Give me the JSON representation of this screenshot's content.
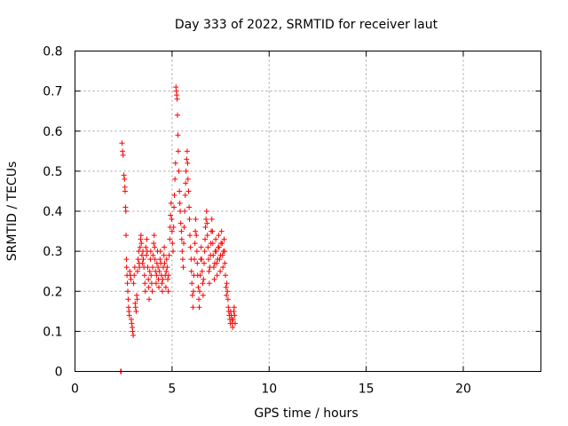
{
  "chart_data": {
    "type": "scatter",
    "title": "Day 333 of 2022, SRMTID for receiver laut",
    "xlabel": "GPS time / hours",
    "ylabel": "SRMTID / TECUs",
    "xlim": [
      0,
      24
    ],
    "ylim": [
      0,
      0.8
    ],
    "xticks": [
      0,
      5,
      10,
      15,
      20
    ],
    "xtick_labels": [
      "0",
      "5",
      "10",
      "15",
      "20"
    ],
    "yticks": [
      0,
      0.1,
      0.2,
      0.3,
      0.4,
      0.5,
      0.6,
      0.7,
      0.8
    ],
    "ytick_labels": [
      "0",
      "0.1",
      "0.2",
      "0.3",
      "0.4",
      "0.5",
      "0.6",
      "0.7",
      "0.8"
    ],
    "grid": true,
    "marker": "+",
    "color": "#ff0000",
    "series": [
      {
        "name": "SRMTID",
        "points": [
          [
            2.35,
            0.0
          ],
          [
            2.37,
            0.0
          ],
          [
            2.38,
            0.0
          ],
          [
            2.42,
            0.57
          ],
          [
            2.45,
            0.55
          ],
          [
            2.48,
            0.54
          ],
          [
            2.52,
            0.49
          ],
          [
            2.55,
            0.48
          ],
          [
            2.57,
            0.46
          ],
          [
            2.58,
            0.45
          ],
          [
            2.6,
            0.41
          ],
          [
            2.62,
            0.4
          ],
          [
            2.63,
            0.34
          ],
          [
            2.65,
            0.28
          ],
          [
            2.66,
            0.26
          ],
          [
            2.68,
            0.24
          ],
          [
            2.7,
            0.22
          ],
          [
            2.72,
            0.2
          ],
          [
            2.74,
            0.18
          ],
          [
            2.76,
            0.16
          ],
          [
            2.78,
            0.15
          ],
          [
            2.8,
            0.14
          ],
          [
            2.82,
            0.25
          ],
          [
            2.85,
            0.24
          ],
          [
            2.88,
            0.23
          ],
          [
            2.9,
            0.13
          ],
          [
            2.92,
            0.12
          ],
          [
            2.95,
            0.11
          ],
          [
            2.97,
            0.1
          ],
          [
            3.0,
            0.09
          ],
          [
            3.02,
            0.22
          ],
          [
            3.05,
            0.24
          ],
          [
            3.08,
            0.26
          ],
          [
            3.1,
            0.17
          ],
          [
            3.12,
            0.16
          ],
          [
            3.15,
            0.15
          ],
          [
            3.18,
            0.19
          ],
          [
            3.2,
            0.18
          ],
          [
            3.22,
            0.25
          ],
          [
            3.25,
            0.28
          ],
          [
            3.28,
            0.3
          ],
          [
            3.3,
            0.27
          ],
          [
            3.32,
            0.26
          ],
          [
            3.35,
            0.31
          ],
          [
            3.38,
            0.33
          ],
          [
            3.4,
            0.34
          ],
          [
            3.42,
            0.32
          ],
          [
            3.45,
            0.29
          ],
          [
            3.48,
            0.27
          ],
          [
            3.5,
            0.3
          ],
          [
            3.52,
            0.28
          ],
          [
            3.55,
            0.26
          ],
          [
            3.58,
            0.24
          ],
          [
            3.6,
            0.22
          ],
          [
            3.62,
            0.2
          ],
          [
            3.65,
            0.31
          ],
          [
            3.68,
            0.29
          ],
          [
            3.7,
            0.33
          ],
          [
            3.72,
            0.3
          ],
          [
            3.75,
            0.26
          ],
          [
            3.78,
            0.23
          ],
          [
            3.8,
            0.21
          ],
          [
            3.82,
            0.18
          ],
          [
            3.85,
            0.25
          ],
          [
            3.88,
            0.28
          ],
          [
            3.9,
            0.3
          ],
          [
            3.92,
            0.24
          ],
          [
            3.95,
            0.22
          ],
          [
            3.98,
            0.2
          ],
          [
            4.0,
            0.26
          ],
          [
            4.02,
            0.29
          ],
          [
            4.05,
            0.32
          ],
          [
            4.08,
            0.34
          ],
          [
            4.1,
            0.31
          ],
          [
            4.12,
            0.28
          ],
          [
            4.15,
            0.25
          ],
          [
            4.18,
            0.22
          ],
          [
            4.2,
            0.24
          ],
          [
            4.22,
            0.27
          ],
          [
            4.25,
            0.3
          ],
          [
            4.28,
            0.26
          ],
          [
            4.3,
            0.23
          ],
          [
            4.32,
            0.21
          ],
          [
            4.35,
            0.25
          ],
          [
            4.38,
            0.28
          ],
          [
            4.4,
            0.3
          ],
          [
            4.42,
            0.27
          ],
          [
            4.45,
            0.24
          ],
          [
            4.48,
            0.22
          ],
          [
            4.5,
            0.2
          ],
          [
            4.52,
            0.23
          ],
          [
            4.55,
            0.26
          ],
          [
            4.58,
            0.29
          ],
          [
            4.6,
            0.31
          ],
          [
            4.62,
            0.27
          ],
          [
            4.65,
            0.24
          ],
          [
            4.68,
            0.21
          ],
          [
            4.7,
            0.25
          ],
          [
            4.72,
            0.28
          ],
          [
            4.75,
            0.26
          ],
          [
            4.78,
            0.23
          ],
          [
            4.8,
            0.2
          ],
          [
            4.82,
            0.24
          ],
          [
            4.85,
            0.29
          ],
          [
            4.88,
            0.33
          ],
          [
            4.9,
            0.36
          ],
          [
            4.92,
            0.39
          ],
          [
            4.95,
            0.42
          ],
          [
            4.98,
            0.38
          ],
          [
            5.0,
            0.35
          ],
          [
            5.02,
            0.32
          ],
          [
            5.05,
            0.3
          ],
          [
            5.08,
            0.36
          ],
          [
            5.1,
            0.41
          ],
          [
            5.12,
            0.44
          ],
          [
            5.15,
            0.48
          ],
          [
            5.18,
            0.52
          ],
          [
            5.2,
            0.71
          ],
          [
            5.22,
            0.7
          ],
          [
            5.24,
            0.69
          ],
          [
            5.26,
            0.68
          ],
          [
            5.28,
            0.64
          ],
          [
            5.3,
            0.59
          ],
          [
            5.32,
            0.55
          ],
          [
            5.35,
            0.5
          ],
          [
            5.38,
            0.45
          ],
          [
            5.4,
            0.42
          ],
          [
            5.42,
            0.4
          ],
          [
            5.45,
            0.37
          ],
          [
            5.48,
            0.35
          ],
          [
            5.5,
            0.33
          ],
          [
            5.52,
            0.3
          ],
          [
            5.55,
            0.28
          ],
          [
            5.58,
            0.26
          ],
          [
            5.6,
            0.32
          ],
          [
            5.62,
            0.36
          ],
          [
            5.65,
            0.4
          ],
          [
            5.68,
            0.44
          ],
          [
            5.7,
            0.47
          ],
          [
            5.72,
            0.5
          ],
          [
            5.75,
            0.53
          ],
          [
            5.78,
            0.55
          ],
          [
            5.8,
            0.52
          ],
          [
            5.82,
            0.48
          ],
          [
            5.85,
            0.45
          ],
          [
            5.88,
            0.41
          ],
          [
            5.9,
            0.38
          ],
          [
            5.92,
            0.34
          ],
          [
            5.95,
            0.31
          ],
          [
            5.98,
            0.28
          ],
          [
            6.0,
            0.25
          ],
          [
            6.02,
            0.22
          ],
          [
            6.05,
            0.19
          ],
          [
            6.08,
            0.16
          ],
          [
            6.1,
            0.2
          ],
          [
            6.12,
            0.24
          ],
          [
            6.15,
            0.28
          ],
          [
            6.18,
            0.32
          ],
          [
            6.2,
            0.35
          ],
          [
            6.22,
            0.38
          ],
          [
            6.25,
            0.34
          ],
          [
            6.28,
            0.3
          ],
          [
            6.3,
            0.27
          ],
          [
            6.32,
            0.24
          ],
          [
            6.35,
            0.21
          ],
          [
            6.38,
            0.18
          ],
          [
            6.4,
            0.16
          ],
          [
            6.42,
            0.2
          ],
          [
            6.45,
            0.24
          ],
          [
            6.48,
            0.28
          ],
          [
            6.5,
            0.31
          ],
          [
            6.52,
            0.28
          ],
          [
            6.55,
            0.25
          ],
          [
            6.58,
            0.22
          ],
          [
            6.6,
            0.19
          ],
          [
            6.62,
            0.23
          ],
          [
            6.65,
            0.27
          ],
          [
            6.68,
            0.3
          ],
          [
            6.7,
            0.33
          ],
          [
            6.72,
            0.36
          ],
          [
            6.75,
            0.38
          ],
          [
            6.78,
            0.4
          ],
          [
            6.8,
            0.37
          ],
          [
            6.82,
            0.34
          ],
          [
            6.85,
            0.31
          ],
          [
            6.88,
            0.28
          ],
          [
            6.9,
            0.25
          ],
          [
            6.92,
            0.22
          ],
          [
            6.95,
            0.26
          ],
          [
            6.98,
            0.29
          ],
          [
            7.0,
            0.32
          ],
          [
            7.02,
            0.35
          ],
          [
            7.05,
            0.38
          ],
          [
            7.08,
            0.35
          ],
          [
            7.1,
            0.32
          ],
          [
            7.12,
            0.29
          ],
          [
            7.15,
            0.26
          ],
          [
            7.18,
            0.23
          ],
          [
            7.2,
            0.27
          ],
          [
            7.22,
            0.3
          ],
          [
            7.25,
            0.33
          ],
          [
            7.28,
            0.3
          ],
          [
            7.3,
            0.27
          ],
          [
            7.32,
            0.24
          ],
          [
            7.35,
            0.28
          ],
          [
            7.38,
            0.31
          ],
          [
            7.4,
            0.34
          ],
          [
            7.42,
            0.31
          ],
          [
            7.45,
            0.28
          ],
          [
            7.48,
            0.25
          ],
          [
            7.5,
            0.29
          ],
          [
            7.52,
            0.32
          ],
          [
            7.55,
            0.35
          ],
          [
            7.58,
            0.32
          ],
          [
            7.6,
            0.29
          ],
          [
            7.62,
            0.26
          ],
          [
            7.65,
            0.3
          ],
          [
            7.68,
            0.33
          ],
          [
            7.7,
            0.3
          ],
          [
            7.72,
            0.27
          ],
          [
            7.75,
            0.24
          ],
          [
            7.78,
            0.21
          ],
          [
            7.8,
            0.19
          ],
          [
            7.82,
            0.22
          ],
          [
            7.85,
            0.2
          ],
          [
            7.88,
            0.18
          ],
          [
            7.9,
            0.16
          ],
          [
            7.92,
            0.15
          ],
          [
            7.95,
            0.14
          ],
          [
            7.98,
            0.13
          ],
          [
            8.0,
            0.12
          ],
          [
            8.02,
            0.15
          ],
          [
            8.05,
            0.14
          ],
          [
            8.08,
            0.13
          ],
          [
            8.1,
            0.12
          ],
          [
            8.12,
            0.11
          ],
          [
            8.15,
            0.13
          ],
          [
            8.18,
            0.15
          ],
          [
            8.2,
            0.16
          ],
          [
            8.22,
            0.14
          ],
          [
            8.25,
            0.12
          ]
        ]
      }
    ]
  }
}
